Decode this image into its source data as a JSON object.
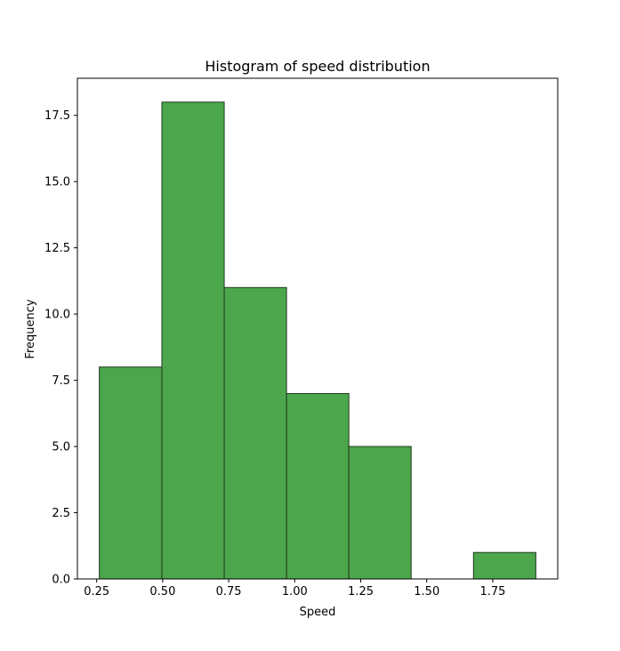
{
  "chart_data": {
    "type": "bar",
    "title": "Histogram of speed distribution",
    "xlabel": "Speed",
    "ylabel": "Frequency",
    "bins": [
      {
        "start": 0.26,
        "end": 0.497,
        "count": 8
      },
      {
        "start": 0.497,
        "end": 0.733,
        "count": 18
      },
      {
        "start": 0.733,
        "end": 0.969,
        "count": 11
      },
      {
        "start": 0.969,
        "end": 1.205,
        "count": 7
      },
      {
        "start": 1.205,
        "end": 1.441,
        "count": 5
      },
      {
        "start": 1.441,
        "end": 1.677,
        "count": 0
      },
      {
        "start": 1.677,
        "end": 1.913,
        "count": 1
      }
    ],
    "xlim": [
      0.177,
      1.996
    ],
    "ylim": [
      0,
      18.9
    ],
    "xticks": [
      0.25,
      0.5,
      0.75,
      1.0,
      1.25,
      1.5,
      1.75
    ],
    "xtick_labels": [
      "0.25",
      "0.50",
      "0.75",
      "1.00",
      "1.25",
      "1.50",
      "1.75"
    ],
    "yticks": [
      0,
      2.5,
      5,
      7.5,
      10,
      12.5,
      15,
      17.5
    ],
    "ytick_labels": [
      "0.0",
      "2.5",
      "5.0",
      "7.5",
      "10.0",
      "12.5",
      "15.0",
      "17.5"
    ],
    "bar_color": "#4ca64c",
    "edge_color": "#1f3a1f",
    "grid": false,
    "legend": "none"
  }
}
